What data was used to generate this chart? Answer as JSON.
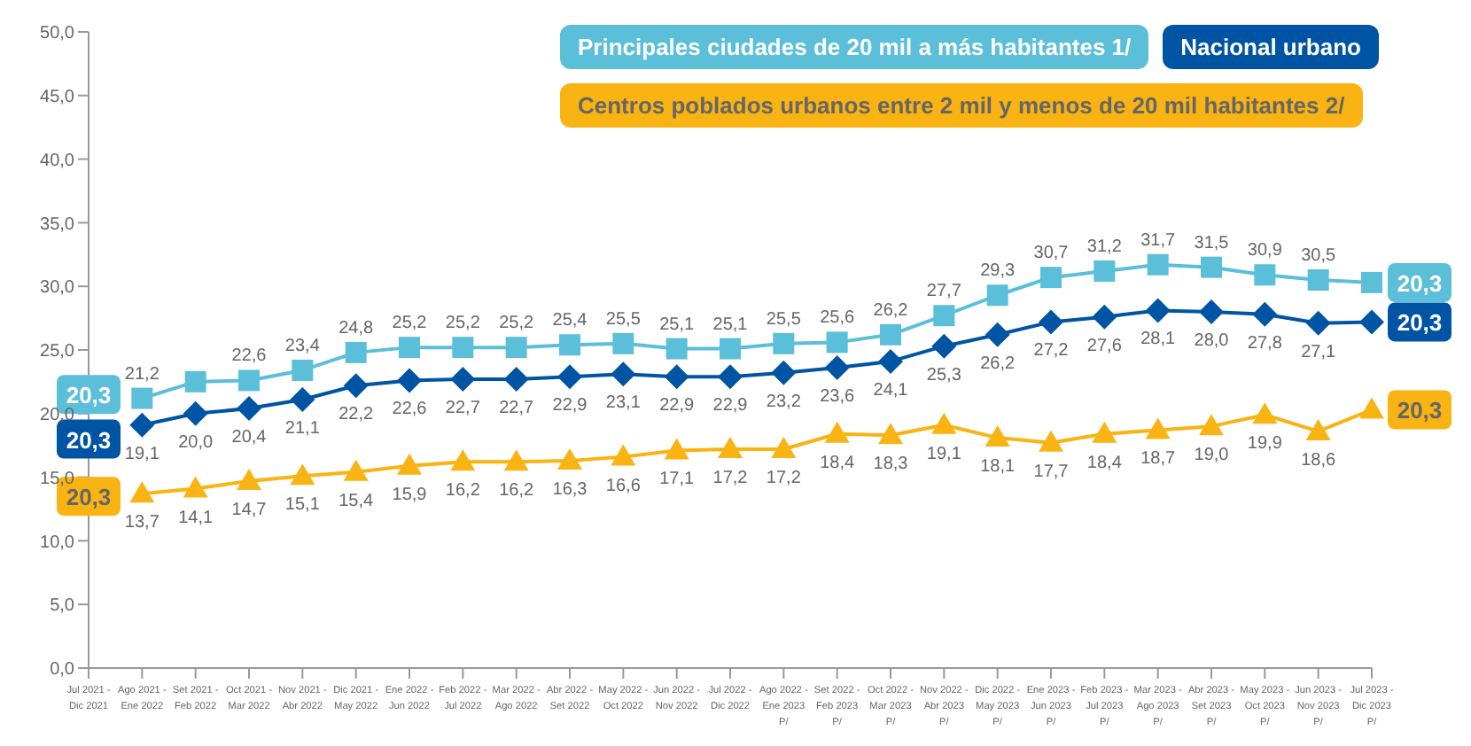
{
  "chart_data": {
    "type": "line",
    "categories": [
      "Jul 2021 - Dic 2021",
      "Ago 2021 - Ene 2022",
      "Set 2021 - Feb 2022",
      "Oct 2021 - Mar 2022",
      "Nov 2021 - Abr 2022",
      "Dic 2021 - May 2022",
      "Ene 2022 - Jun 2022",
      "Feb 2022 - Jul 2022",
      "Mar 2022 - Ago 2022",
      "Abr 2022 - Set 2022",
      "May 2022 - Oct 2022",
      "Jun 2022 - Nov 2022",
      "Jul 2022 - Dic 2022",
      "Ago 2022 - Ene 2023 P/",
      "Set 2022 - Feb 2023 P/",
      "Oct 2022 - Mar 2023 P/",
      "Nov 2022 - Abr 2023 P/",
      "Dic 2022 - May 2023 P/",
      "Ene 2023 - Jun 2023 P/",
      "Feb 2023 - Jul 2023 P/",
      "Mar 2023 - Ago 2023 P/",
      "Abr 2023 - Set 2023 P/",
      "May 2023 - Oct 2023 P/",
      "Jun 2023 - Nov 2023 P/",
      "Jul 2023 - Dic 2023 P/"
    ],
    "series": [
      {
        "name": "Principales ciudades de 20 mil a más habitantes 1/",
        "color": "#5bbfd9",
        "marker": "square",
        "values": [
          null,
          21.2,
          22.5,
          22.6,
          23.4,
          24.8,
          25.2,
          25.2,
          25.2,
          25.4,
          25.5,
          25.1,
          25.1,
          25.5,
          25.6,
          26.2,
          27.7,
          29.3,
          30.7,
          31.2,
          31.7,
          31.5,
          30.9,
          30.5,
          30.3
        ],
        "value_labels": [
          null,
          "21,2",
          null,
          "22,6",
          "23,4",
          "24,8",
          "25,2",
          "25,2",
          "25,2",
          "25,4",
          "25,5",
          "25,1",
          "25,1",
          "25,5",
          "25,6",
          "26,2",
          "27,7",
          "29,3",
          "30,7",
          "31,2",
          "31,7",
          "31,5",
          "30,9",
          "30,5",
          null
        ]
      },
      {
        "name": "Nacional urbano",
        "color": "#0054a4",
        "marker": "diamond",
        "values": [
          null,
          19.1,
          20.0,
          20.4,
          21.1,
          22.2,
          22.6,
          22.7,
          22.7,
          22.9,
          23.1,
          22.9,
          22.9,
          23.2,
          23.6,
          24.1,
          25.3,
          26.2,
          27.2,
          27.6,
          28.1,
          28.0,
          27.8,
          27.1,
          27.2
        ],
        "value_labels": [
          null,
          "19,1",
          "20,0",
          "20,4",
          "21,1",
          "22,2",
          "22,6",
          "22,7",
          "22,7",
          "22,9",
          "23,1",
          "22,9",
          "22,9",
          "23,2",
          "23,6",
          "24,1",
          "25,3",
          "26,2",
          "27,2",
          "27,6",
          "28,1",
          "28,0",
          "27,8",
          "27,1",
          null
        ]
      },
      {
        "name": "Centros poblados urbanos entre 2 mil y menos de 20 mil habitantes 2/",
        "color": "#f9b312",
        "marker": "triangle",
        "values": [
          null,
          13.7,
          14.1,
          14.7,
          15.1,
          15.4,
          15.9,
          16.2,
          16.2,
          16.3,
          16.6,
          17.1,
          17.2,
          17.2,
          18.4,
          18.3,
          19.1,
          18.1,
          17.7,
          18.4,
          18.7,
          19.0,
          19.9,
          18.6,
          20.3
        ],
        "value_labels": [
          null,
          "13,7",
          "14,1",
          "14,7",
          "15,1",
          "15,4",
          "15,9",
          "16,2",
          "16,2",
          "16,3",
          "16,6",
          "17,1",
          "17,2",
          "17,2",
          "18,4",
          "18,3",
          "19,1",
          "18,1",
          "17,7",
          "18,4",
          "18,7",
          "19,0",
          "19,9",
          "18,6",
          null
        ]
      }
    ],
    "annotations": [
      {
        "text": "20,3",
        "x": "Jul 2021 - Dic 2021",
        "y": 21.5
      },
      {
        "text": "20,3",
        "x": "Jul 2021 - Dic 2021",
        "y": 18.0
      },
      {
        "text": "20,3",
        "x": "Jul 2021 - Dic 2021",
        "y": 13.5
      },
      {
        "text": "20,3",
        "x": "Jul 2023 - Dic 2023 P/",
        "y": 30.3
      },
      {
        "text": "20,3",
        "x": "Jul 2023 - Dic 2023 P/",
        "y": 27.2
      },
      {
        "text": "20,3",
        "x": "Jul 2023 - Dic 2023 P/",
        "y": 20.3
      }
    ],
    "ylim": [
      0,
      50
    ],
    "yticks": [
      {
        "value": 0,
        "label": "0,0"
      },
      {
        "value": 5,
        "label": "5,0"
      },
      {
        "value": 10,
        "label": "10,0"
      },
      {
        "value": 15,
        "label": "15,0"
      },
      {
        "value": 20,
        "label": "20,0"
      },
      {
        "value": 25,
        "label": "25,0"
      },
      {
        "value": 30,
        "label": "30,0"
      },
      {
        "value": 35,
        "label": "35,0"
      },
      {
        "value": 40,
        "label": "40,0"
      },
      {
        "value": 45,
        "label": "45,0"
      },
      {
        "value": 50,
        "label": "50,0"
      }
    ],
    "grid": false,
    "legend": "top right",
    "line_style": "solid"
  }
}
